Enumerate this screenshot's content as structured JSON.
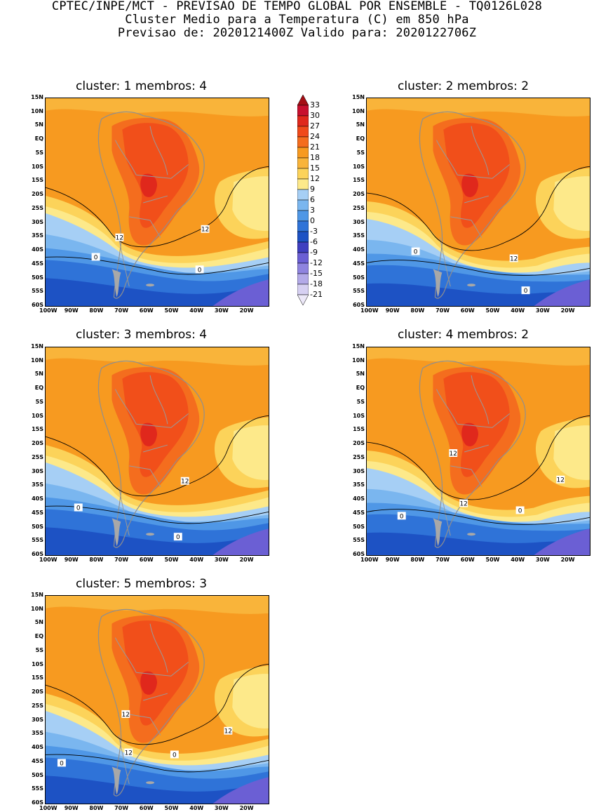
{
  "header": {
    "line1": "CPTEC/INPE/MCT - PREVISAO DE TEMPO GLOBAL POR ENSEMBLE - TQ0126L028",
    "line2": "Cluster Medio para a Temperatura (C) em 850 hPa",
    "line3": "Previsao de: 2020121400Z   Valido para: 2020122706Z"
  },
  "panels": [
    {
      "title": "cluster: 1   membros: 4",
      "contour_labels": [
        "12",
        "12",
        "0",
        "0"
      ]
    },
    {
      "title": "cluster: 2   membros: 2",
      "contour_labels": [
        "12",
        "0",
        "0"
      ]
    },
    {
      "title": "cluster: 3   membros: 4",
      "contour_labels": [
        "12",
        "0",
        "0"
      ]
    },
    {
      "title": "cluster: 4   membros: 2",
      "contour_labels": [
        "12",
        "12",
        "12",
        "0",
        "0"
      ]
    },
    {
      "title": "cluster: 5   membros: 3",
      "contour_labels": [
        "12",
        "12",
        "12",
        "0",
        "0"
      ]
    }
  ],
  "lat_ticks": [
    "15N",
    "10N",
    "5N",
    "EQ",
    "5S",
    "10S",
    "15S",
    "20S",
    "25S",
    "30S",
    "35S",
    "40S",
    "45S",
    "50S",
    "55S",
    "60S"
  ],
  "lon_ticks": [
    "100W",
    "90W",
    "80W",
    "70W",
    "60W",
    "50W",
    "40W",
    "30W",
    "20W"
  ],
  "colorbar": {
    "labels": [
      "33",
      "30",
      "27",
      "24",
      "21",
      "18",
      "15",
      "12",
      "9",
      "6",
      "3",
      "0",
      "-3",
      "-6",
      "-9",
      "-12",
      "-15",
      "-18",
      "-21"
    ],
    "colors": [
      "#a50f15",
      "#c8102e",
      "#e0281c",
      "#f04a1a",
      "#f46d1e",
      "#f79a20",
      "#f9b43a",
      "#fcd35a",
      "#fde98a",
      "#a6cff5",
      "#7ab6ef",
      "#4f97e6",
      "#2f73d8",
      "#1d52c4",
      "#3f3fc0",
      "#6b5fd4",
      "#8f84df",
      "#b3aae8",
      "#d6d0f2",
      "#ece8f8"
    ]
  }
}
